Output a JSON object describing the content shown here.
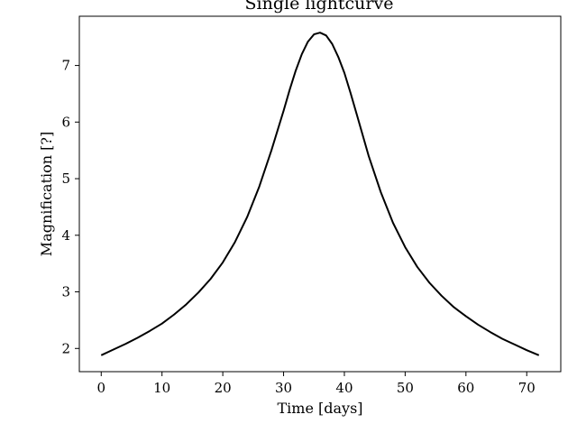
{
  "chart_data": {
    "type": "line",
    "title": "Single lightcurve",
    "xlabel": "Time [days]",
    "ylabel": "Magnification [?]",
    "xlim": [
      -3.6,
      75.6
    ],
    "ylim": [
      1.59,
      7.87
    ],
    "xticks": [
      0,
      10,
      20,
      30,
      40,
      50,
      60,
      70
    ],
    "yticks": [
      2,
      3,
      4,
      5,
      6,
      7
    ],
    "grid": false,
    "legend": "none",
    "line_color": "#000000",
    "series": [
      {
        "x": [
          0,
          2,
          4,
          6,
          8,
          10,
          12,
          14,
          16,
          18,
          20,
          22,
          24,
          26,
          28,
          30,
          31,
          32,
          33,
          34,
          35,
          36,
          37,
          38,
          39,
          40,
          41,
          42,
          44,
          46,
          48,
          50,
          52,
          54,
          56,
          58,
          60,
          62,
          64,
          66,
          68,
          70,
          72
        ],
        "y": [
          1.88,
          1.98,
          2.08,
          2.19,
          2.31,
          2.44,
          2.6,
          2.78,
          2.99,
          3.23,
          3.52,
          3.88,
          4.32,
          4.86,
          5.5,
          6.2,
          6.57,
          6.91,
          7.2,
          7.42,
          7.55,
          7.58,
          7.53,
          7.38,
          7.15,
          6.87,
          6.52,
          6.15,
          5.4,
          4.76,
          4.22,
          3.79,
          3.44,
          3.16,
          2.93,
          2.73,
          2.57,
          2.42,
          2.29,
          2.17,
          2.07,
          1.97,
          1.88
        ]
      }
    ]
  }
}
